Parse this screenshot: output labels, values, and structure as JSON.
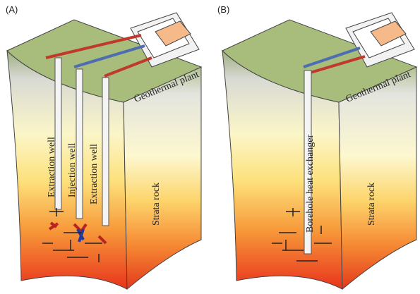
{
  "panels": [
    {
      "label": "(A)",
      "wells": [
        "Extraction well",
        "Injection well",
        "Extraction well"
      ],
      "plant_label": "Geothermal plant",
      "rock_label": "Strata rock"
    },
    {
      "label": "(B)",
      "wells": [
        "Borehole heat exchanger"
      ],
      "plant_label": "Geothermal plant",
      "rock_label": "Strata rock"
    }
  ]
}
